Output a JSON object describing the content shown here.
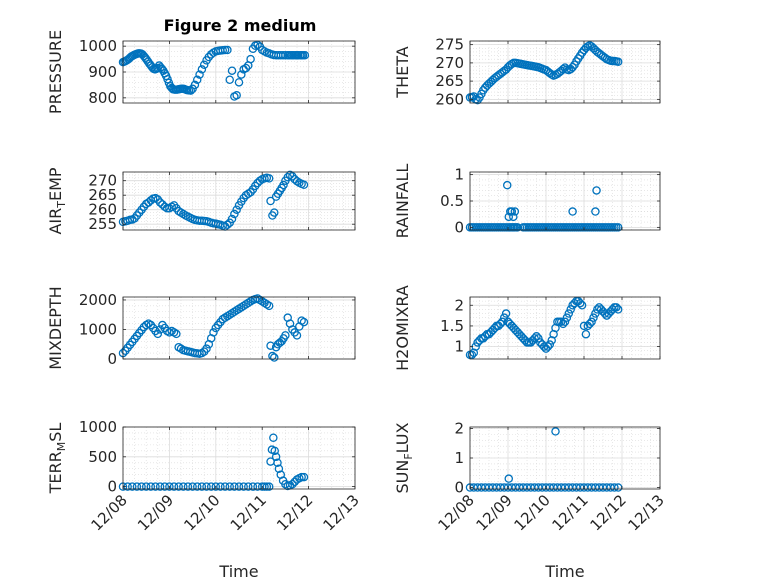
{
  "figure": {
    "title": "Figure 2 medium",
    "series_color": "#0072BD",
    "axis_color": "#262626",
    "grid": true,
    "minor_grid": true
  },
  "chart_data": [
    {
      "type": "scatter",
      "title": "Figure 2 medium",
      "ylabel": "PRESSURE",
      "xlabel": "",
      "ylim": [
        780,
        1020
      ],
      "yticks": [
        800,
        900,
        1000
      ],
      "x": [
        0.0,
        0.03,
        0.06,
        0.09,
        0.12,
        0.15,
        0.18,
        0.21,
        0.24,
        0.27,
        0.3,
        0.33,
        0.36,
        0.39,
        0.42,
        0.45,
        0.48,
        0.51,
        0.54,
        0.57,
        0.6,
        0.63,
        0.66,
        0.69,
        0.72,
        0.75,
        0.78,
        0.81,
        0.84,
        0.87,
        0.9,
        0.93,
        0.96,
        0.99,
        1.02,
        1.05,
        1.08,
        1.11,
        1.14,
        1.17,
        1.2,
        1.23,
        1.26,
        1.29,
        1.32,
        1.35,
        1.38,
        1.42,
        1.46,
        1.5,
        1.55,
        1.6,
        1.65,
        1.7,
        1.75,
        1.8,
        1.85,
        1.9,
        1.95,
        2.0,
        2.05,
        2.1,
        2.15,
        2.2,
        2.25,
        2.3,
        2.35,
        2.4,
        2.45,
        2.5,
        2.55,
        2.6,
        2.65,
        2.7,
        2.75,
        2.8,
        2.85,
        2.9,
        2.95,
        3.0,
        3.05,
        3.1,
        3.15,
        3.2,
        3.25,
        3.3,
        3.35,
        3.4,
        3.45,
        3.5,
        3.55,
        3.58,
        3.62,
        3.65,
        3.68,
        3.72,
        3.75,
        3.78,
        3.82,
        3.85,
        3.88,
        3.92
      ],
      "y": [
        938,
        940,
        943,
        946,
        950,
        955,
        960,
        963,
        966,
        968,
        970,
        972,
        972,
        971,
        968,
        962,
        955,
        948,
        940,
        932,
        925,
        918,
        912,
        910,
        912,
        915,
        925,
        918,
        912,
        905,
        895,
        885,
        872,
        858,
        845,
        838,
        833,
        832,
        832,
        832,
        833,
        834,
        835,
        835,
        834,
        832,
        830,
        829,
        828,
        835,
        850,
        870,
        890,
        910,
        928,
        945,
        958,
        968,
        975,
        980,
        982,
        983,
        984,
        985,
        985,
        870,
        905,
        805,
        810,
        860,
        890,
        910,
        915,
        925,
        950,
        990,
        1002,
        1005,
        998,
        985,
        980,
        975,
        972,
        968,
        966,
        965,
        965,
        965,
        965,
        965,
        965,
        965,
        965,
        965,
        965,
        965,
        965,
        965,
        965,
        965,
        965,
        965
      ]
    },
    {
      "type": "scatter",
      "ylabel": "THETA",
      "xlabel": "",
      "ylim": [
        259,
        276
      ],
      "yticks": [
        260,
        265,
        270,
        275
      ],
      "x": [
        0.0,
        0.05,
        0.1,
        0.15,
        0.2,
        0.25,
        0.3,
        0.35,
        0.4,
        0.45,
        0.5,
        0.55,
        0.6,
        0.65,
        0.7,
        0.75,
        0.8,
        0.85,
        0.9,
        0.95,
        1.0,
        1.05,
        1.1,
        1.15,
        1.2,
        1.25,
        1.3,
        1.35,
        1.4,
        1.45,
        1.5,
        1.55,
        1.6,
        1.65,
        1.7,
        1.75,
        1.8,
        1.85,
        1.9,
        1.95,
        2.0,
        2.05,
        2.1,
        2.15,
        2.2,
        2.25,
        2.3,
        2.35,
        2.4,
        2.45,
        2.5,
        2.55,
        2.6,
        2.65,
        2.7,
        2.75,
        2.8,
        2.85,
        2.9,
        2.95,
        3.0,
        3.05,
        3.1,
        3.15,
        3.2,
        3.25,
        3.3,
        3.35,
        3.4,
        3.45,
        3.5,
        3.55,
        3.6,
        3.65,
        3.7,
        3.75,
        3.8,
        3.85,
        3.9
      ],
      "y": [
        260.5,
        260.6,
        260.8,
        260.0,
        259.8,
        260.5,
        261.5,
        262.5,
        263.2,
        263.8,
        264.3,
        264.8,
        265.3,
        265.8,
        266.2,
        266.6,
        267.0,
        267.4,
        267.8,
        268.2,
        268.8,
        269.3,
        269.7,
        270.0,
        270.0,
        269.9,
        269.8,
        269.7,
        269.6,
        269.5,
        269.4,
        269.3,
        269.2,
        269.1,
        269.0,
        268.9,
        268.8,
        268.6,
        268.4,
        268.2,
        268.0,
        267.6,
        267.2,
        266.8,
        266.5,
        266.7,
        267.0,
        267.4,
        267.8,
        268.3,
        268.7,
        268.2,
        268.0,
        268.3,
        268.8,
        269.5,
        270.4,
        271.2,
        272.0,
        272.8,
        273.5,
        274.1,
        274.5,
        274.8,
        274.5,
        274.0,
        273.5,
        273.0,
        272.6,
        272.2,
        271.8,
        271.4,
        271.0,
        270.8,
        270.6,
        270.5,
        270.5,
        270.4,
        270.3
      ]
    },
    {
      "type": "scatter",
      "ylabel": "AIR_TEMP",
      "xlabel": "",
      "ylim": [
        253,
        273
      ],
      "yticks": [
        255,
        260,
        265,
        270
      ],
      "x": [
        0.0,
        0.05,
        0.1,
        0.15,
        0.2,
        0.25,
        0.3,
        0.35,
        0.4,
        0.45,
        0.5,
        0.55,
        0.6,
        0.65,
        0.7,
        0.75,
        0.8,
        0.85,
        0.9,
        0.95,
        1.0,
        1.05,
        1.1,
        1.15,
        1.2,
        1.25,
        1.3,
        1.35,
        1.4,
        1.45,
        1.5,
        1.55,
        1.6,
        1.65,
        1.7,
        1.75,
        1.8,
        1.85,
        1.9,
        1.95,
        2.0,
        2.05,
        2.1,
        2.15,
        2.2,
        2.25,
        2.3,
        2.35,
        2.4,
        2.45,
        2.5,
        2.55,
        2.6,
        2.65,
        2.7,
        2.75,
        2.8,
        2.85,
        2.9,
        2.95,
        3.0,
        3.05,
        3.1,
        3.15,
        3.18,
        3.22,
        3.26,
        3.3,
        3.34,
        3.38,
        3.42,
        3.46,
        3.5,
        3.55,
        3.6,
        3.65,
        3.7,
        3.75,
        3.8,
        3.85,
        3.9
      ],
      "y": [
        255.8,
        256.0,
        256.2,
        256.5,
        256.6,
        257.0,
        258.0,
        259.0,
        260.0,
        261.0,
        262.0,
        262.5,
        263.2,
        263.8,
        264.0,
        263.5,
        262.5,
        261.8,
        261.0,
        260.5,
        260.5,
        261.0,
        261.5,
        260.5,
        259.5,
        259.0,
        258.5,
        258.0,
        257.6,
        257.2,
        256.8,
        256.5,
        256.3,
        256.2,
        256.2,
        256.1,
        256.0,
        255.8,
        255.5,
        255.3,
        255.2,
        255.0,
        254.8,
        254.5,
        254.2,
        254.8,
        255.5,
        256.8,
        258.5,
        260.0,
        261.5,
        262.8,
        264.0,
        265.0,
        265.5,
        266.0,
        267.0,
        268.2,
        269.2,
        270.0,
        270.5,
        270.8,
        271.0,
        270.8,
        263.0,
        258.0,
        259.0,
        264.5,
        265.5,
        266.5,
        267.5,
        268.5,
        270.0,
        271.2,
        272.0,
        271.5,
        270.5,
        269.8,
        269.3,
        268.9,
        268.6
      ]
    },
    {
      "type": "scatter",
      "ylabel": "RAINFALL",
      "xlabel": "",
      "ylim": [
        -0.05,
        1.05
      ],
      "yticks": [
        0,
        0.5,
        1
      ],
      "x": [
        0.0,
        0.05,
        0.1,
        0.15,
        0.2,
        0.25,
        0.3,
        0.35,
        0.4,
        0.45,
        0.5,
        0.55,
        0.6,
        0.65,
        0.7,
        0.75,
        0.8,
        0.85,
        0.9,
        0.95,
        1.0,
        1.05,
        1.08,
        1.12,
        1.15,
        1.18,
        1.22,
        1.25,
        1.4,
        1.45,
        1.5,
        1.55,
        1.6,
        1.65,
        1.7,
        1.75,
        1.8,
        1.85,
        1.9,
        1.95,
        2.0,
        2.05,
        2.1,
        2.15,
        2.2,
        2.25,
        2.3,
        2.35,
        2.4,
        2.45,
        2.5,
        2.55,
        2.6,
        2.65,
        2.7,
        2.75,
        2.8,
        2.85,
        2.9,
        2.95,
        3.0,
        3.05,
        3.1,
        3.15,
        3.2,
        3.25,
        3.3,
        3.35,
        3.4,
        3.45,
        3.5,
        3.55,
        3.6,
        3.65,
        3.7,
        3.75,
        3.8,
        3.85,
        3.9,
        0.98,
        1.02,
        1.06,
        1.1,
        1.14,
        1.18,
        2.7,
        3.3,
        3.33
      ],
      "y": [
        0,
        0,
        0,
        0,
        0,
        0,
        0,
        0,
        0,
        0,
        0,
        0,
        0,
        0,
        0,
        0,
        0,
        0,
        0,
        0,
        0,
        0,
        0,
        0,
        0,
        0,
        0,
        0,
        0,
        0,
        0,
        0,
        0,
        0,
        0,
        0,
        0,
        0,
        0,
        0,
        0,
        0,
        0,
        0,
        0,
        0,
        0,
        0,
        0,
        0,
        0,
        0,
        0,
        0,
        0,
        0,
        0,
        0,
        0,
        0,
        0,
        0,
        0,
        0,
        0,
        0,
        0,
        0,
        0,
        0,
        0,
        0,
        0,
        0,
        0,
        0,
        0,
        0,
        0,
        0.8,
        0.2,
        0.3,
        0.3,
        0.2,
        0.3,
        0.3,
        0.3,
        0.7
      ]
    },
    {
      "type": "scatter",
      "ylabel": "MIXDEPTH",
      "xlabel": "",
      "ylim": [
        0,
        2100
      ],
      "yticks": [
        0,
        1000,
        2000
      ],
      "x": [
        0.0,
        0.05,
        0.1,
        0.15,
        0.2,
        0.25,
        0.3,
        0.35,
        0.4,
        0.45,
        0.5,
        0.55,
        0.6,
        0.65,
        0.7,
        0.75,
        0.8,
        0.85,
        0.9,
        0.95,
        1.0,
        1.05,
        1.1,
        1.15,
        1.2,
        1.25,
        1.3,
        1.35,
        1.4,
        1.45,
        1.5,
        1.55,
        1.6,
        1.65,
        1.7,
        1.75,
        1.8,
        1.85,
        1.9,
        1.95,
        2.0,
        2.05,
        2.1,
        2.15,
        2.2,
        2.25,
        2.3,
        2.35,
        2.4,
        2.45,
        2.5,
        2.55,
        2.6,
        2.65,
        2.7,
        2.75,
        2.8,
        2.85,
        2.9,
        2.95,
        3.0,
        3.05,
        3.1,
        3.15,
        3.18,
        3.22,
        3.26,
        3.3,
        3.34,
        3.38,
        3.42,
        3.46,
        3.5,
        3.55,
        3.6,
        3.65,
        3.7,
        3.75,
        3.8,
        3.85,
        3.9
      ],
      "y": [
        200,
        280,
        380,
        480,
        580,
        680,
        780,
        880,
        980,
        1080,
        1150,
        1200,
        1150,
        1050,
        950,
        850,
        1000,
        1150,
        1050,
        950,
        900,
        950,
        900,
        850,
        400,
        350,
        300,
        280,
        260,
        240,
        220,
        200,
        190,
        180,
        200,
        250,
        350,
        500,
        700,
        900,
        1050,
        1150,
        1250,
        1350,
        1400,
        1450,
        1500,
        1550,
        1600,
        1650,
        1700,
        1750,
        1800,
        1850,
        1900,
        1950,
        2000,
        2030,
        2050,
        2000,
        1950,
        1900,
        1850,
        1800,
        450,
        100,
        50,
        400,
        500,
        550,
        600,
        700,
        800,
        1400,
        1200,
        1000,
        900,
        800,
        1100,
        1300,
        1250
      ]
    },
    {
      "type": "scatter",
      "ylabel": "H2OMIXRA",
      "xlabel": "",
      "ylim": [
        0.7,
        2.2
      ],
      "yticks": [
        1,
        1.5,
        2
      ],
      "x": [
        0.0,
        0.05,
        0.1,
        0.15,
        0.2,
        0.25,
        0.3,
        0.35,
        0.4,
        0.45,
        0.5,
        0.55,
        0.6,
        0.65,
        0.7,
        0.75,
        0.8,
        0.85,
        0.9,
        0.95,
        1.0,
        1.05,
        1.1,
        1.15,
        1.2,
        1.25,
        1.3,
        1.35,
        1.4,
        1.45,
        1.5,
        1.55,
        1.6,
        1.65,
        1.7,
        1.75,
        1.8,
        1.85,
        1.9,
        1.95,
        2.0,
        2.05,
        2.1,
        2.15,
        2.2,
        2.25,
        2.3,
        2.35,
        2.4,
        2.45,
        2.5,
        2.55,
        2.6,
        2.65,
        2.7,
        2.75,
        2.8,
        2.85,
        2.9,
        2.95,
        3.0,
        3.05,
        3.1,
        3.15,
        3.2,
        3.25,
        3.3,
        3.35,
        3.4,
        3.45,
        3.5,
        3.55,
        3.6,
        3.65,
        3.7,
        3.75,
        3.8,
        3.85,
        3.9
      ],
      "y": [
        0.8,
        0.8,
        0.85,
        1.0,
        1.1,
        1.15,
        1.2,
        1.2,
        1.25,
        1.3,
        1.3,
        1.35,
        1.4,
        1.45,
        1.5,
        1.5,
        1.55,
        1.6,
        1.7,
        1.8,
        1.6,
        1.55,
        1.5,
        1.45,
        1.4,
        1.35,
        1.3,
        1.25,
        1.2,
        1.15,
        1.1,
        1.1,
        1.1,
        1.15,
        1.2,
        1.25,
        1.2,
        1.1,
        1.05,
        1.0,
        0.95,
        1.0,
        1.05,
        1.15,
        1.3,
        1.45,
        1.6,
        1.6,
        1.6,
        1.55,
        1.6,
        1.7,
        1.8,
        1.9,
        2.0,
        2.05,
        2.1,
        2.1,
        2.05,
        2.0,
        1.5,
        1.3,
        1.5,
        1.55,
        1.6,
        1.7,
        1.8,
        1.9,
        1.95,
        1.9,
        1.85,
        1.8,
        1.75,
        1.8,
        1.85,
        1.9,
        1.95,
        1.95,
        1.9
      ]
    },
    {
      "type": "scatter",
      "ylabel": "TERR_MSL",
      "xlabel": "Time",
      "ylim": [
        -40,
        1000
      ],
      "yticks": [
        0,
        500,
        1000
      ],
      "x": [
        0.0,
        0.1,
        0.2,
        0.3,
        0.4,
        0.5,
        0.6,
        0.7,
        0.8,
        0.9,
        1.0,
        1.1,
        1.2,
        1.3,
        1.4,
        1.5,
        1.6,
        1.7,
        1.8,
        1.9,
        2.0,
        2.1,
        2.2,
        2.3,
        2.4,
        2.5,
        2.6,
        2.7,
        2.8,
        2.9,
        3.0,
        3.05,
        3.1,
        3.15,
        3.18,
        3.21,
        3.24,
        3.27,
        3.3,
        3.33,
        3.36,
        3.4,
        3.45,
        3.5,
        3.55,
        3.6,
        3.65,
        3.7,
        3.75,
        3.8,
        3.85,
        3.9
      ],
      "y": [
        0,
        0,
        0,
        0,
        0,
        0,
        0,
        0,
        0,
        0,
        0,
        0,
        0,
        0,
        0,
        0,
        0,
        0,
        0,
        0,
        0,
        0,
        0,
        0,
        0,
        0,
        0,
        0,
        0,
        0,
        0,
        0,
        0,
        0,
        420,
        620,
        820,
        600,
        500,
        400,
        300,
        200,
        100,
        40,
        10,
        20,
        40,
        80,
        120,
        140,
        160,
        160
      ]
    },
    {
      "type": "scatter",
      "ylabel": "SUN_FLUX",
      "xlabel": "Time",
      "ylim": [
        -0.05,
        2.05
      ],
      "yticks": [
        0,
        1,
        2
      ],
      "x": [
        0.0,
        0.1,
        0.2,
        0.3,
        0.4,
        0.5,
        0.6,
        0.7,
        0.8,
        0.9,
        1.0,
        1.1,
        1.2,
        1.3,
        1.4,
        1.5,
        1.6,
        1.7,
        1.8,
        1.9,
        2.0,
        2.1,
        2.2,
        2.3,
        2.4,
        2.5,
        2.6,
        2.7,
        2.8,
        2.9,
        3.0,
        3.1,
        3.2,
        3.3,
        3.4,
        3.5,
        3.6,
        3.7,
        3.8,
        3.9,
        1.02,
        2.25
      ],
      "y": [
        0,
        0,
        0,
        0,
        0,
        0,
        0,
        0,
        0,
        0,
        0,
        0,
        0,
        0,
        0,
        0,
        0,
        0,
        0,
        0,
        0,
        0,
        0,
        0,
        0,
        0,
        0,
        0,
        0,
        0,
        0,
        0,
        0,
        0,
        0,
        0,
        0,
        0,
        0,
        0,
        0.3,
        1.9
      ]
    }
  ],
  "shared_x": {
    "xlim": [
      0,
      5
    ],
    "tick_positions": [
      0,
      1,
      2,
      3,
      4,
      5
    ],
    "tick_labels": [
      "12/08",
      "12/09",
      "12/10",
      "12/11",
      "12/12",
      "12/13"
    ]
  }
}
